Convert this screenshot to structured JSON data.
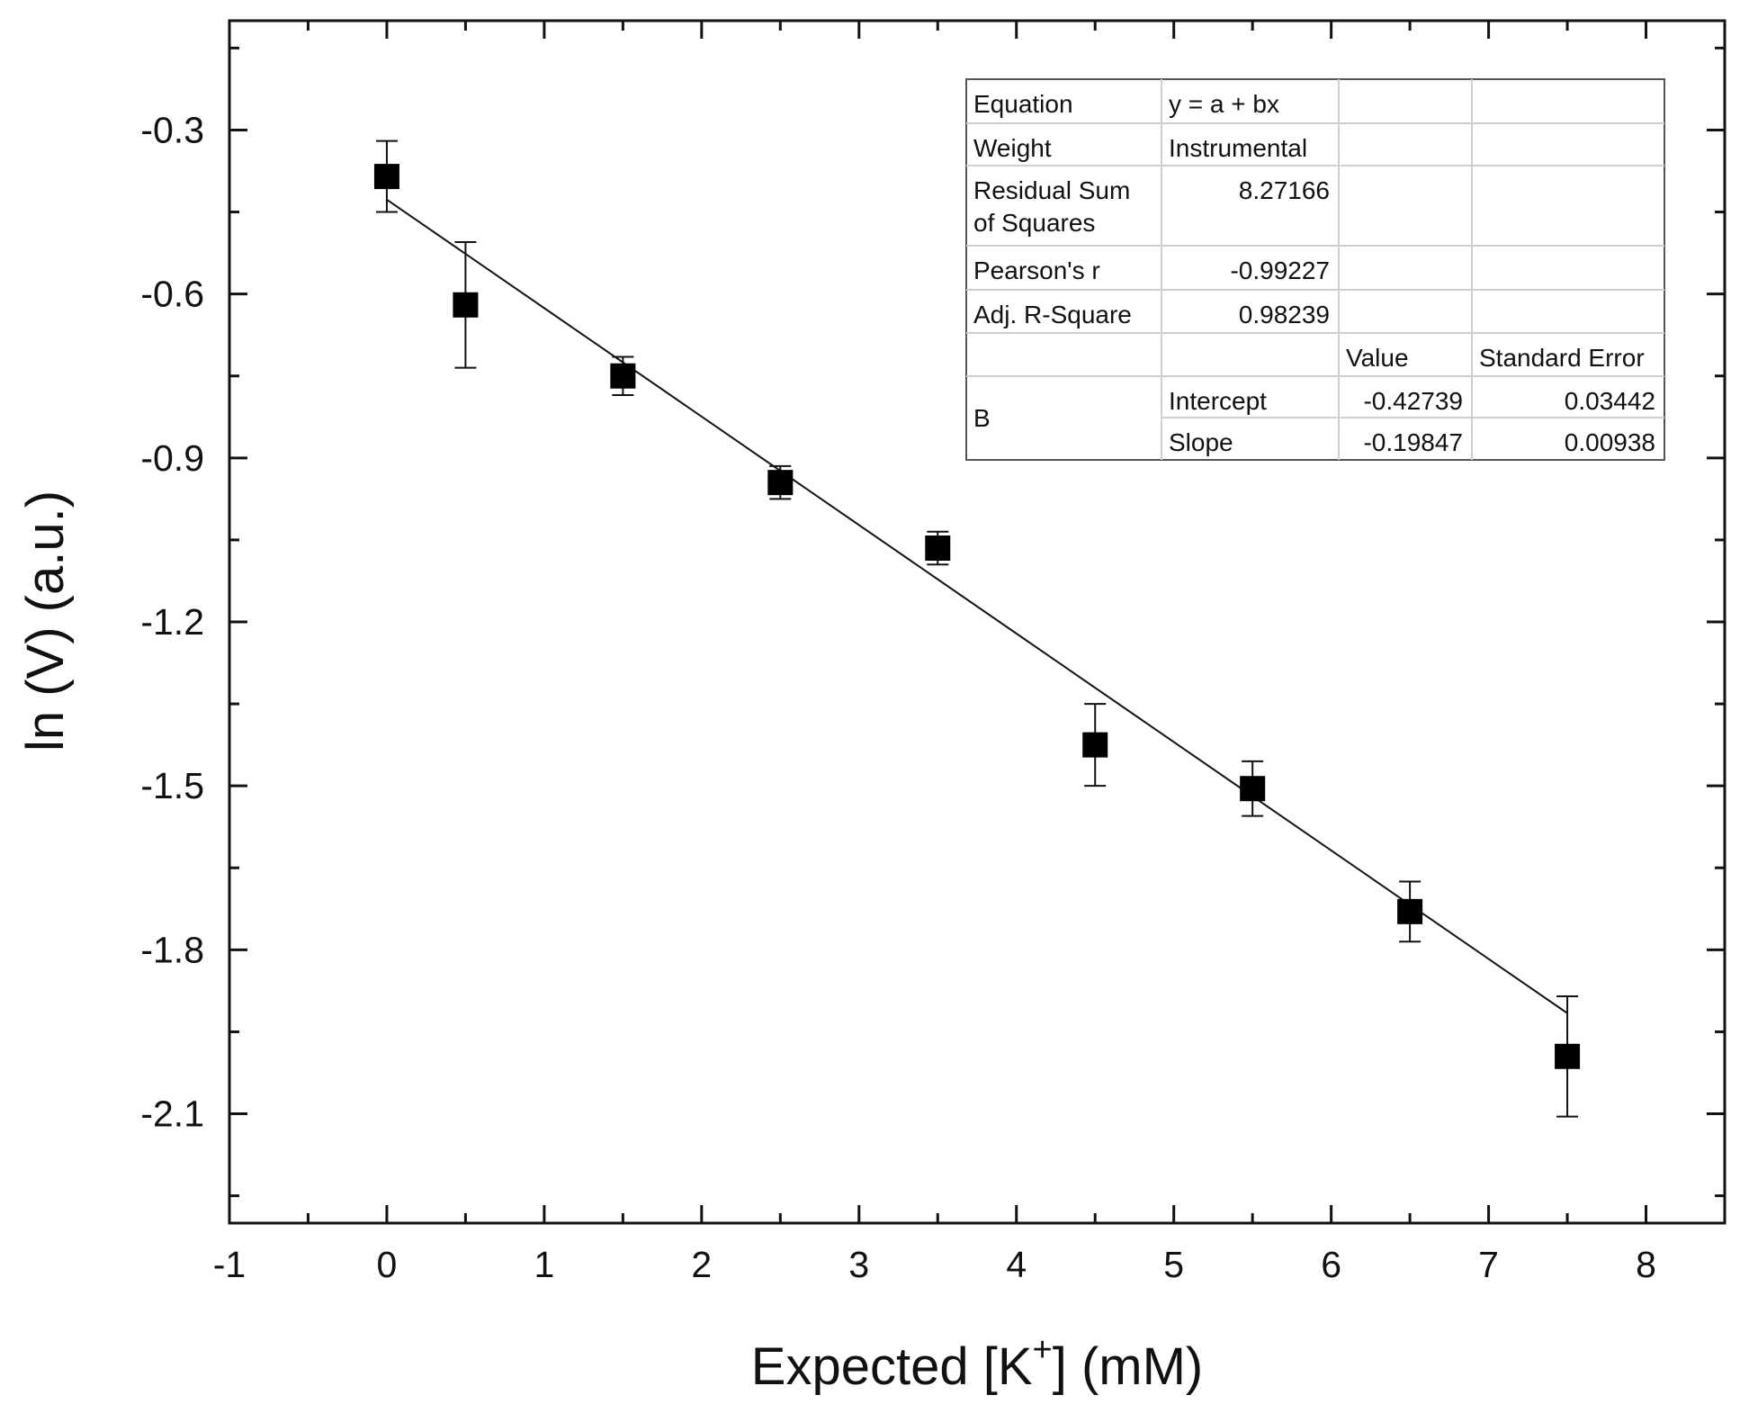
{
  "chart_data": {
    "type": "scatter",
    "title": "",
    "xlabel": "Expected [K",
    "xlabel_sup": "+",
    "xlabel_tail": "] (mM)",
    "ylabel": "ln (V) (a.u.)",
    "xlim": [
      -1,
      8.5
    ],
    "ylim": [
      -2.3,
      -0.1
    ],
    "x_ticks": [
      -1,
      0,
      1,
      2,
      3,
      4,
      5,
      6,
      7,
      8
    ],
    "x_tick_labels": [
      "-1",
      "0",
      "1",
      "2",
      "3",
      "4",
      "5",
      "6",
      "7",
      "8"
    ],
    "y_ticks": [
      -0.3,
      -0.6,
      -0.9,
      -1.2,
      -1.5,
      -1.8,
      -2.1
    ],
    "y_tick_labels": [
      "-0.3",
      "-0.6",
      "-0.9",
      "-1.2",
      "-1.5",
      "-1.8",
      "-2.1"
    ],
    "series": [
      {
        "name": "data",
        "x": [
          0,
          0.5,
          1.5,
          2.5,
          3.5,
          4.5,
          5.5,
          6.5,
          7.5
        ],
        "y": [
          -0.385,
          -0.62,
          -0.75,
          -0.945,
          -1.065,
          -1.425,
          -1.505,
          -1.73,
          -1.995
        ],
        "err": [
          0.065,
          0.115,
          0.035,
          0.03,
          0.03,
          0.075,
          0.05,
          0.055,
          0.11
        ]
      }
    ],
    "fit": {
      "intercept": -0.42739,
      "slope": -0.19847,
      "x_range": [
        0,
        7.5
      ]
    }
  },
  "stats_table": {
    "rows": [
      [
        "Equation",
        "y = a + bx",
        "",
        ""
      ],
      [
        "Weight",
        "Instrumental",
        "",
        ""
      ],
      [
        "Residual Sum|of Squares",
        "8.27166",
        "",
        ""
      ],
      [
        "Pearson's r",
        "-0.99227",
        "",
        ""
      ],
      [
        "Adj. R-Square",
        "0.98239",
        "",
        ""
      ],
      [
        "",
        "",
        "Value",
        "Standard Error"
      ],
      [
        "B",
        "Intercept",
        "-0.42739",
        "0.03442"
      ],
      [
        "",
        "Slope",
        "-0.19847",
        "0.00938"
      ]
    ]
  }
}
